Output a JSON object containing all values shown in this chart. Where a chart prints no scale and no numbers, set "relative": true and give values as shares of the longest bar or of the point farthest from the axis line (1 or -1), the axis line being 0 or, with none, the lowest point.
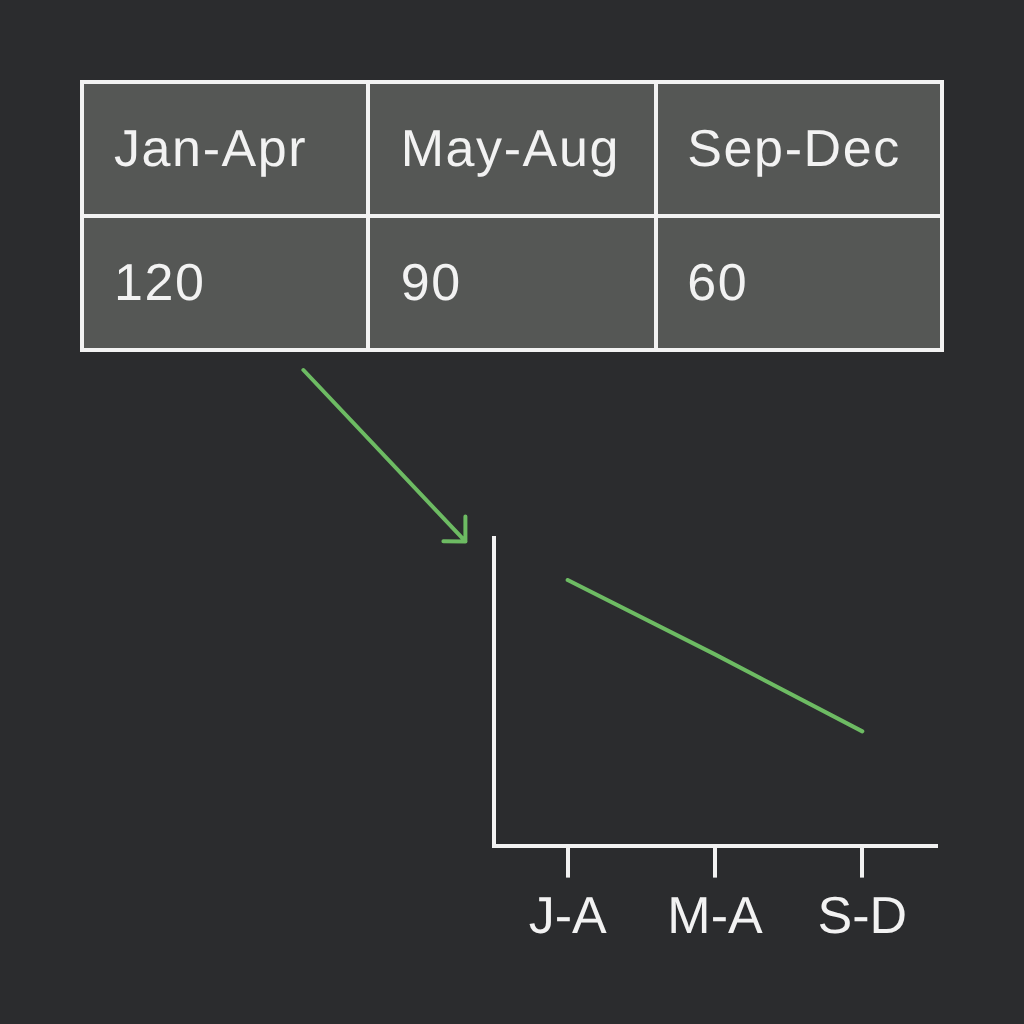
{
  "chart_data": [
    {
      "type": "other",
      "categories": [
        "Jan-Apr",
        "May-Aug",
        "Sep-Dec"
      ],
      "values": [
        120,
        90,
        60
      ],
      "data_labels": true
    },
    {
      "type": "line",
      "categories": [
        "J-A",
        "M-A",
        "S-D"
      ],
      "relative": true,
      "values": [
        1,
        0.72,
        0.43
      ],
      "color": "#6dbb63",
      "marker": "none"
    }
  ]
}
